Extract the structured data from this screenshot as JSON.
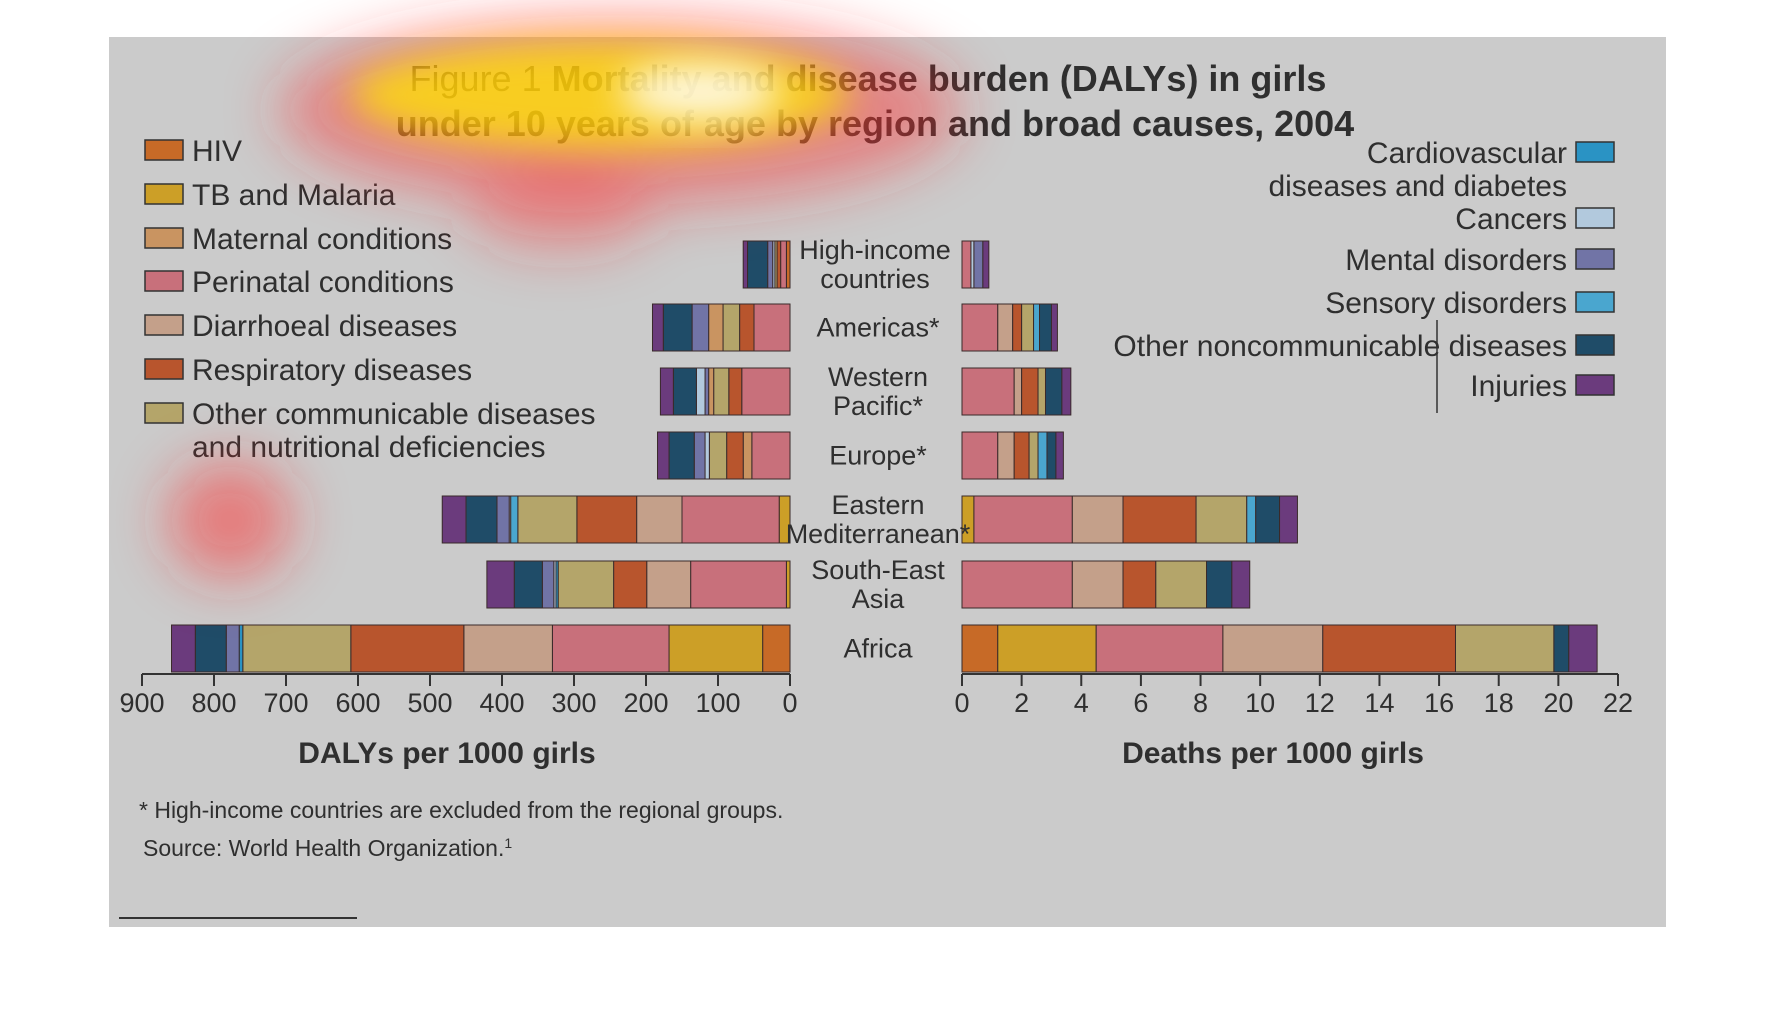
{
  "title": {
    "line1_prefix": "Figure 1",
    "line1_rest": "Mortality and disease burden (DALYs) in girls",
    "line2": "under 10 years of age by region and broad causes, 2004"
  },
  "left_axis": {
    "label": "DALYs per 1000 girls",
    "max": 900,
    "ticks": [
      900,
      800,
      700,
      600,
      500,
      400,
      300,
      200,
      100,
      0
    ]
  },
  "right_axis": {
    "label": "Deaths per 1000 girls",
    "max": 22,
    "ticks": [
      0,
      2,
      4,
      6,
      8,
      10,
      12,
      14,
      16,
      18,
      20,
      22
    ]
  },
  "footnote": "* High-income countries are excluded from the regional groups.",
  "source": {
    "text": "Source: World Health Organization.",
    "ref": "1"
  },
  "legend_left": [
    {
      "key": "hiv",
      "lines": [
        "HIV"
      ]
    },
    {
      "key": "tb",
      "lines": [
        "TB and Malaria"
      ]
    },
    {
      "key": "maternal",
      "lines": [
        "Maternal conditions"
      ]
    },
    {
      "key": "perinatal",
      "lines": [
        "Perinatal conditions"
      ]
    },
    {
      "key": "diarrhoeal",
      "lines": [
        "Diarrhoeal diseases"
      ]
    },
    {
      "key": "respiratory",
      "lines": [
        "Respiratory diseases"
      ]
    },
    {
      "key": "othercomm",
      "lines": [
        "Other communicable diseases",
        "and nutritional deficiencies"
      ]
    }
  ],
  "legend_right": [
    {
      "key": "cardio",
      "lines": [
        "Cardiovascular",
        "diseases and diabetes"
      ]
    },
    {
      "key": "cancers",
      "lines": [
        "Cancers"
      ]
    },
    {
      "key": "mental",
      "lines": [
        "Mental disorders"
      ]
    },
    {
      "key": "sensory",
      "lines": [
        "Sensory disorders"
      ]
    },
    {
      "key": "otherncd",
      "lines": [
        "Other noncommunicable diseases"
      ]
    },
    {
      "key": "injuries",
      "lines": [
        "Injuries"
      ]
    }
  ],
  "chart_data": {
    "type": "bar",
    "orientation": "horizontal",
    "stacked": true,
    "layout": "back-to-back",
    "categories": [
      {
        "label": [
          "High-income",
          "countries"
        ]
      },
      {
        "label": [
          "Americas*"
        ]
      },
      {
        "label": [
          "Western",
          "Pacific*"
        ]
      },
      {
        "label": [
          "Europe*"
        ]
      },
      {
        "label": [
          "Eastern",
          "Mediterranean*"
        ]
      },
      {
        "label": [
          "South-East",
          "Asia"
        ]
      },
      {
        "label": [
          "Africa"
        ]
      }
    ],
    "cause_colors": {
      "tb": "#cc9f27",
      "hiv": "#c76a27",
      "perinatal": "#c8707b",
      "diarrhoeal": "#c4a08a",
      "respiratory": "#b8552d",
      "othercomm": "#b4a56a",
      "maternal": "#c99461",
      "cardio": "#2a93c4",
      "cancers": "#b2c9dd",
      "mental": "#7174a6",
      "sensory": "#4aa6cf",
      "otherncd": "#1f4c68",
      "injuries": "#6b3b7d"
    },
    "dalys": {
      "xlabel": "DALYs per 1000 girls",
      "xlim": [
        0,
        900
      ],
      "series_order_from_zero": [
        "tb",
        "hiv",
        "perinatal",
        "diarrhoeal",
        "respiratory",
        "othercomm",
        "maternal",
        "cardio",
        "cancers",
        "mental",
        "sensory",
        "otherncd",
        "injuries"
      ],
      "segments": [
        [
          [
            "hiv",
            5
          ],
          [
            "perinatal",
            8
          ],
          [
            "respiratory",
            5
          ],
          [
            "othercomm",
            3
          ],
          [
            "cancers",
            3
          ],
          [
            "mental",
            7
          ],
          [
            "otherncd",
            28
          ],
          [
            "injuries",
            6
          ]
        ],
        [
          [
            "perinatal",
            50
          ],
          [
            "respiratory",
            20
          ],
          [
            "othercomm",
            23
          ],
          [
            "maternal",
            20
          ],
          [
            "mental",
            23
          ],
          [
            "otherncd",
            40
          ],
          [
            "injuries",
            15
          ]
        ],
        [
          [
            "perinatal",
            67
          ],
          [
            "respiratory",
            18
          ],
          [
            "othercomm",
            21
          ],
          [
            "maternal",
            7
          ],
          [
            "mental",
            5
          ],
          [
            "cancers",
            12
          ],
          [
            "otherncd",
            32
          ],
          [
            "injuries",
            18
          ]
        ],
        [
          [
            "perinatal",
            53
          ],
          [
            "maternal",
            12
          ],
          [
            "respiratory",
            23
          ],
          [
            "othercomm",
            24
          ],
          [
            "cancers",
            6
          ],
          [
            "mental",
            15
          ],
          [
            "otherncd",
            35
          ],
          [
            "injuries",
            16
          ]
        ],
        [
          [
            "tb",
            15
          ],
          [
            "perinatal",
            135
          ],
          [
            "diarrhoeal",
            63
          ],
          [
            "respiratory",
            83
          ],
          [
            "othercomm",
            82
          ],
          [
            "sensory",
            10
          ],
          [
            "cancers",
            2
          ],
          [
            "mental",
            17
          ],
          [
            "otherncd",
            43
          ],
          [
            "injuries",
            33
          ]
        ],
        [
          [
            "tb",
            5
          ],
          [
            "perinatal",
            133
          ],
          [
            "diarrhoeal",
            61
          ],
          [
            "respiratory",
            46
          ],
          [
            "othercomm",
            77
          ],
          [
            "cardio",
            3
          ],
          [
            "cancers",
            3
          ],
          [
            "mental",
            16
          ],
          [
            "otherncd",
            39
          ],
          [
            "injuries",
            38
          ]
        ],
        [
          [
            "hiv",
            38
          ],
          [
            "tb",
            130
          ],
          [
            "perinatal",
            162
          ],
          [
            "diarrhoeal",
            123
          ],
          [
            "respiratory",
            157
          ],
          [
            "othercomm",
            150
          ],
          [
            "cardio",
            5
          ],
          [
            "mental",
            18
          ],
          [
            "otherncd",
            43
          ],
          [
            "injuries",
            33
          ]
        ]
      ]
    },
    "deaths": {
      "xlabel": "Deaths per 1000 girls",
      "xlim": [
        0,
        22
      ],
      "segments": [
        [
          [
            "perinatal",
            0.3
          ],
          [
            "cancers",
            0.1
          ],
          [
            "mental",
            0.3
          ],
          [
            "injuries",
            0.2
          ]
        ],
        [
          [
            "perinatal",
            1.2
          ],
          [
            "diarrhoeal",
            0.5
          ],
          [
            "respiratory",
            0.3
          ],
          [
            "othercomm",
            0.4
          ],
          [
            "sensory",
            0.2
          ],
          [
            "otherncd",
            0.4
          ],
          [
            "injuries",
            0.2
          ]
        ],
        [
          [
            "perinatal",
            1.75
          ],
          [
            "diarrhoeal",
            0.25
          ],
          [
            "respiratory",
            0.55
          ],
          [
            "othercomm",
            0.25
          ],
          [
            "otherncd",
            0.55
          ],
          [
            "injuries",
            0.3
          ]
        ],
        [
          [
            "perinatal",
            1.2
          ],
          [
            "diarrhoeal",
            0.55
          ],
          [
            "respiratory",
            0.5
          ],
          [
            "othercomm",
            0.3
          ],
          [
            "sensory",
            0.3
          ],
          [
            "otherncd",
            0.3
          ],
          [
            "injuries",
            0.25
          ]
        ],
        [
          [
            "tb",
            0.4
          ],
          [
            "perinatal",
            3.3
          ],
          [
            "diarrhoeal",
            1.7
          ],
          [
            "respiratory",
            2.45
          ],
          [
            "othercomm",
            1.7
          ],
          [
            "sensory",
            0.3
          ],
          [
            "otherncd",
            0.8
          ],
          [
            "injuries",
            0.6
          ]
        ],
        [
          [
            "perinatal",
            3.7
          ],
          [
            "diarrhoeal",
            1.7
          ],
          [
            "respiratory",
            1.1
          ],
          [
            "othercomm",
            1.7
          ],
          [
            "otherncd",
            0.85
          ],
          [
            "injuries",
            0.6
          ]
        ],
        [
          [
            "hiv",
            1.2
          ],
          [
            "tb",
            3.3
          ],
          [
            "perinatal",
            4.25
          ],
          [
            "diarrhoeal",
            3.35
          ],
          [
            "respiratory",
            4.45
          ],
          [
            "othercomm",
            3.3
          ],
          [
            "otherncd",
            0.5
          ],
          [
            "injuries",
            0.95
          ]
        ]
      ]
    }
  }
}
